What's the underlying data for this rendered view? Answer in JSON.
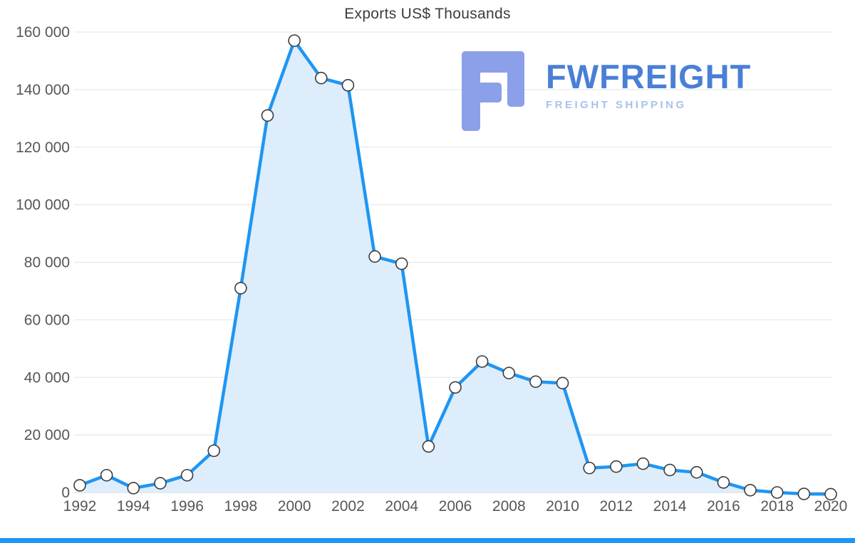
{
  "page": {
    "title": "Exports US$ Thousands"
  },
  "logo": {
    "name": "FWFREIGHT",
    "tagline": "FREIGHT SHIPPING"
  },
  "colors": {
    "line": "#1e96f3",
    "area_fill": "#ddedfc",
    "marker_fill": "#ffffff",
    "marker_stroke": "#3c3c3c",
    "grid": "#e3e3e3",
    "zero_line": "#d2d2d2",
    "axis_text": "#565656",
    "title_text": "#3c3c3c",
    "logo_text": "#4a7fd6",
    "logo_tagline": "#a9c3ea",
    "logo_mark": "#8ba0e8",
    "bottom_bar": "#2196f3"
  },
  "chart_data": {
    "type": "area",
    "title": "Exports US$ Thousands",
    "x": [
      1992,
      1993,
      1994,
      1995,
      1996,
      1997,
      1998,
      1999,
      2000,
      2001,
      2002,
      2003,
      2004,
      2005,
      2006,
      2007,
      2008,
      2009,
      2010,
      2011,
      2012,
      2013,
      2014,
      2015,
      2016,
      2017,
      2018,
      2019,
      2020
    ],
    "series": [
      {
        "name": "Exports US$ Thousands",
        "values": [
          2500,
          6000,
          1500,
          3200,
          6000,
          14500,
          71000,
          131000,
          157000,
          144000,
          141500,
          82000,
          79500,
          16000,
          36500,
          45500,
          41500,
          38500,
          38000,
          8500,
          9000,
          10000,
          7800,
          7000,
          3500,
          800,
          0,
          -500,
          -600
        ]
      }
    ],
    "ylim": [
      0,
      160000
    ],
    "ytick_step": 20000,
    "ytick_labels": [
      "0",
      "20 000",
      "40 000",
      "60 000",
      "80 000",
      "100 000",
      "120 000",
      "140 000",
      "160 000"
    ],
    "xtick_years": [
      1992,
      1994,
      1996,
      1998,
      2000,
      2002,
      2004,
      2006,
      2008,
      2010,
      2012,
      2014,
      2016,
      2018,
      2020
    ],
    "grid": "horizontal",
    "legend": "none",
    "marker": "circle"
  }
}
